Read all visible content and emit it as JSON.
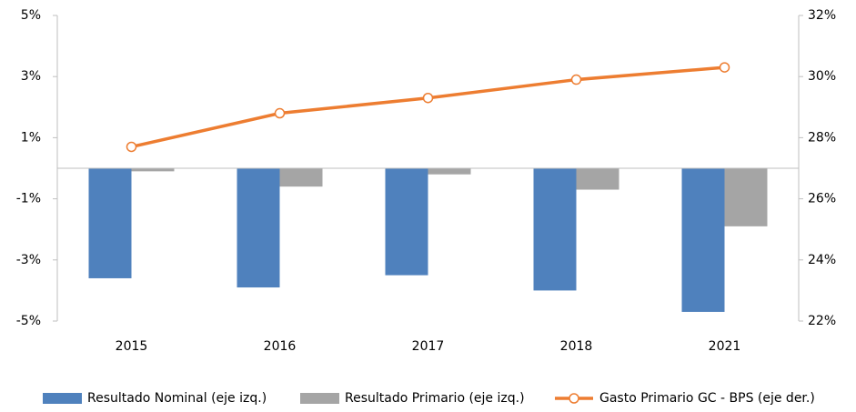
{
  "chart_data": {
    "type": "bar-line",
    "categories": [
      "2015",
      "2016",
      "2017",
      "2018",
      "2021"
    ],
    "series": [
      {
        "name": "Resultado Nominal (eje izq.)",
        "type": "bar",
        "color": "#4f81bd",
        "values": [
          -3.6,
          -3.9,
          -3.5,
          -4.0,
          -4.7
        ]
      },
      {
        "name": "Resultado Primario (eje izq.)",
        "type": "bar",
        "color": "#a5a5a5",
        "values": [
          -0.1,
          -0.6,
          -0.2,
          -0.7,
          -1.9
        ]
      },
      {
        "name": "Gasto Primario GC - BPS (eje der.)",
        "type": "line",
        "axis": "y2",
        "color": "#ed7d31",
        "values": [
          27.7,
          28.8,
          29.3,
          29.9,
          30.3
        ]
      }
    ],
    "ylim": [
      -5,
      5
    ],
    "yticks": [
      {
        "value": 5,
        "label": "5%"
      },
      {
        "value": 3,
        "label": "3%"
      },
      {
        "value": 1,
        "label": "1%"
      },
      {
        "value": -1,
        "label": "-1%"
      },
      {
        "value": -3,
        "label": "-3%"
      },
      {
        "value": -5,
        "label": "-5%"
      }
    ],
    "y2lim": [
      22,
      32
    ],
    "y2ticks": [
      {
        "value": 32,
        "label": "32%"
      },
      {
        "value": 30,
        "label": "30%"
      },
      {
        "value": 28,
        "label": "28%"
      },
      {
        "value": 26,
        "label": "26%"
      },
      {
        "value": 24,
        "label": "24%"
      },
      {
        "value": 22,
        "label": "22%"
      }
    ],
    "legend": "bottom"
  }
}
